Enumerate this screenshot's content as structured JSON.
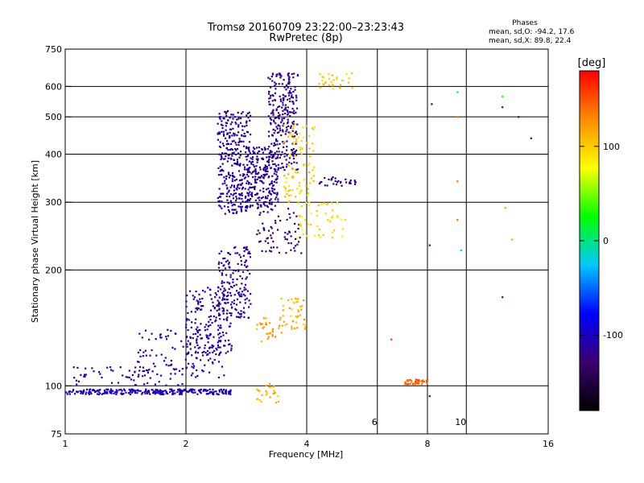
{
  "chart_data": {
    "type": "scatter",
    "title": "Tromsø 20160709 23:22:00–23:23:43",
    "subtitle": "RwPretec (8p)",
    "phase_title": "Phases",
    "phase_stats": [
      "mean, sd,O: -94.2, 17.6",
      "mean, sd,X:  89.8, 22.4"
    ],
    "xlabel": "Frequency [MHz]",
    "ylabel": "Stationary phase Virtual Height [km]",
    "x_scale": "log",
    "y_scale": "log",
    "xlim": [
      1,
      16
    ],
    "ylim": [
      75,
      750
    ],
    "x_ticks": [
      1,
      2,
      4,
      8,
      16
    ],
    "x_tick_labels": [
      "1",
      "2",
      "4",
      "8",
      "16"
    ],
    "x_grid": [
      2,
      4,
      6,
      8,
      10
    ],
    "x_minor_labels": [
      {
        "value": 6,
        "label": "6"
      },
      {
        "value": 10,
        "label": "10"
      }
    ],
    "y_ticks": [
      75,
      100,
      200,
      300,
      400,
      500,
      600,
      750
    ],
    "y_tick_labels": [
      "75",
      "100",
      "200",
      "300",
      "400",
      "500",
      "600",
      "750"
    ],
    "y_grid": [
      100,
      200,
      300,
      400,
      500,
      600
    ],
    "grid": true,
    "colorbar": {
      "unit": "[deg]",
      "range": [
        -180,
        180
      ],
      "ticks": [
        100,
        0,
        -100
      ],
      "tick_labels": [
        "100",
        "0",
        "-100"
      ],
      "colors": [
        "#000000",
        "#3a0070",
        "#0000ff",
        "#00c8ff",
        "#00ff00",
        "#ffff00",
        "#ff8c00",
        "#ff0000"
      ]
    },
    "clusters": [
      {
        "x": [
          1.0,
          2.6
        ],
        "y": [
          95,
          98
        ],
        "phase": -105,
        "n": 260
      },
      {
        "x": [
          1.05,
          2.0
        ],
        "y": [
          100,
          112
        ],
        "phase": -110,
        "n": 60
      },
      {
        "x": [
          1.5,
          2.5
        ],
        "y": [
          105,
          140
        ],
        "phase": -110,
        "n": 120
      },
      {
        "x": [
          2.0,
          2.6
        ],
        "y": [
          120,
          180
        ],
        "phase": -112,
        "n": 170
      },
      {
        "x": [
          2.4,
          2.9
        ],
        "y": [
          150,
          230
        ],
        "phase": -115,
        "n": 160
      },
      {
        "x": [
          2.4,
          2.9
        ],
        "y": [
          280,
          520
        ],
        "phase": -112,
        "n": 330
      },
      {
        "x": [
          2.8,
          3.4
        ],
        "y": [
          290,
          420
        ],
        "phase": -115,
        "n": 230
      },
      {
        "x": [
          3.2,
          3.8
        ],
        "y": [
          360,
          650
        ],
        "phase": -118,
        "n": 260
      },
      {
        "x": [
          3.0,
          3.9
        ],
        "y": [
          220,
          290
        ],
        "phase": -130,
        "n": 70
      },
      {
        "x": [
          3.0,
          3.5
        ],
        "y": [
          130,
          150
        ],
        "phase": 120,
        "n": 30
      },
      {
        "x": [
          3.4,
          4.0
        ],
        "y": [
          140,
          170
        ],
        "phase": 110,
        "n": 45
      },
      {
        "x": [
          3.5,
          4.2
        ],
        "y": [
          300,
          480
        ],
        "phase": 100,
        "n": 90
      },
      {
        "x": [
          4.2,
          5.2
        ],
        "y": [
          590,
          650
        ],
        "phase": 100,
        "n": 30
      },
      {
        "x": [
          3.8,
          5.0
        ],
        "y": [
          240,
          300
        ],
        "phase": 95,
        "n": 50
      },
      {
        "x": [
          4.3,
          5.3
        ],
        "y": [
          330,
          350
        ],
        "phase": -118,
        "n": 30
      },
      {
        "x": [
          3.0,
          3.4
        ],
        "y": [
          90,
          102
        ],
        "phase": 110,
        "n": 25
      },
      {
        "x": [
          7.0,
          8.0
        ],
        "y": [
          101,
          104
        ],
        "phase": 145,
        "n": 45
      }
    ],
    "sparse_points": [
      {
        "x": 6.5,
        "y": 132,
        "phase": 160
      },
      {
        "x": 8.1,
        "y": 232,
        "phase": -120
      },
      {
        "x": 8.1,
        "y": 94,
        "phase": -120
      },
      {
        "x": 8.2,
        "y": 540,
        "phase": -120
      },
      {
        "x": 9.5,
        "y": 580,
        "phase": 20
      },
      {
        "x": 9.5,
        "y": 500,
        "phase": 140
      },
      {
        "x": 9.5,
        "y": 270,
        "phase": 140
      },
      {
        "x": 9.5,
        "y": 340,
        "phase": 140
      },
      {
        "x": 9.7,
        "y": 225,
        "phase": -20
      },
      {
        "x": 12.3,
        "y": 565,
        "phase": 30
      },
      {
        "x": 12.3,
        "y": 530,
        "phase": -120
      },
      {
        "x": 12.3,
        "y": 170,
        "phase": -120
      },
      {
        "x": 12.5,
        "y": 290,
        "phase": 120
      },
      {
        "x": 13.5,
        "y": 500,
        "phase": -120
      },
      {
        "x": 13.0,
        "y": 240,
        "phase": 120
      },
      {
        "x": 14.5,
        "y": 440,
        "phase": -120
      }
    ]
  }
}
